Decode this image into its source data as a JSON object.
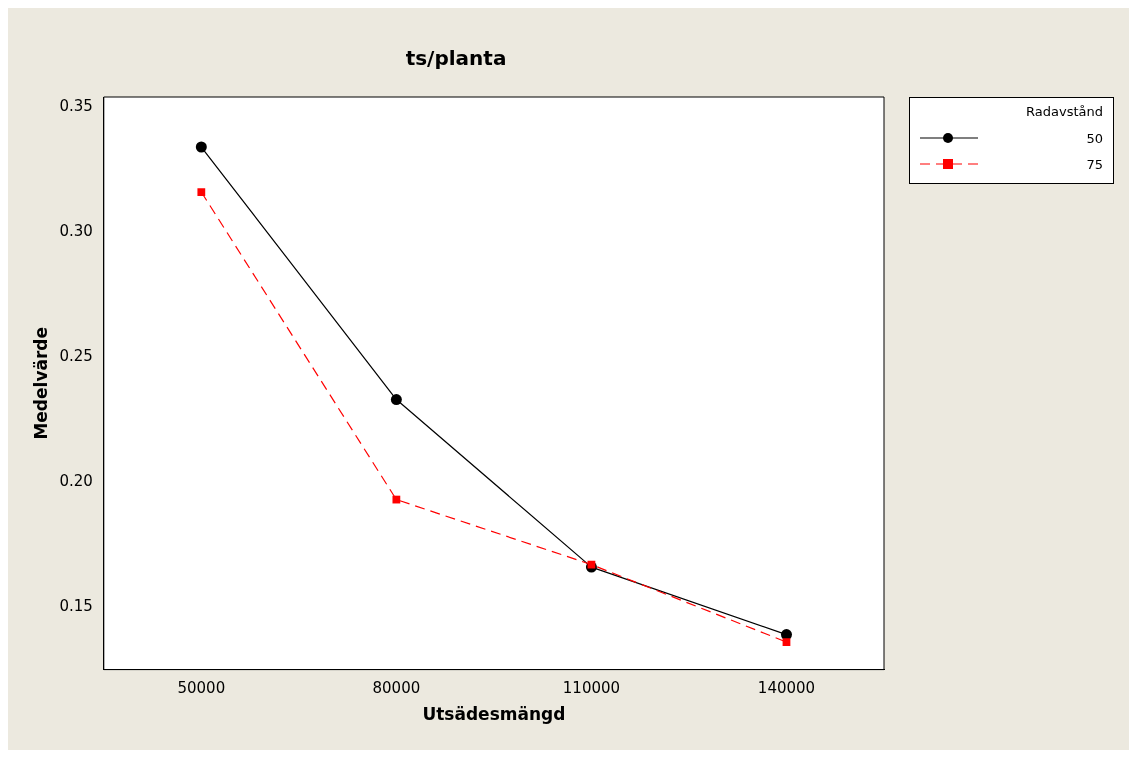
{
  "chart_data": {
    "type": "line",
    "title": "ts/planta",
    "xlabel": "Utsädesmängd",
    "ylabel": "Medelvärde",
    "legend_title": "Radavstånd",
    "categories": [
      "50000",
      "80000",
      "110000",
      "140000"
    ],
    "series": [
      {
        "name": "50",
        "color": "#000000",
        "values": [
          0.334,
          0.233,
          0.166,
          0.139
        ],
        "marker": "circle",
        "line_style": "solid"
      },
      {
        "name": "75",
        "color": "#ff0000",
        "values": [
          0.316,
          0.193,
          0.167,
          0.136
        ],
        "marker": "square",
        "line_style": "dashed"
      }
    ],
    "ylim": [
      0.125,
      0.354
    ],
    "yticks": [
      0.15,
      {
        "value": 0.2,
        "label": "0.20"
      },
      0.25,
      {
        "value": 0.3,
        "label": "0.30"
      },
      0.35
    ],
    "grid": false,
    "legend": "top right"
  }
}
